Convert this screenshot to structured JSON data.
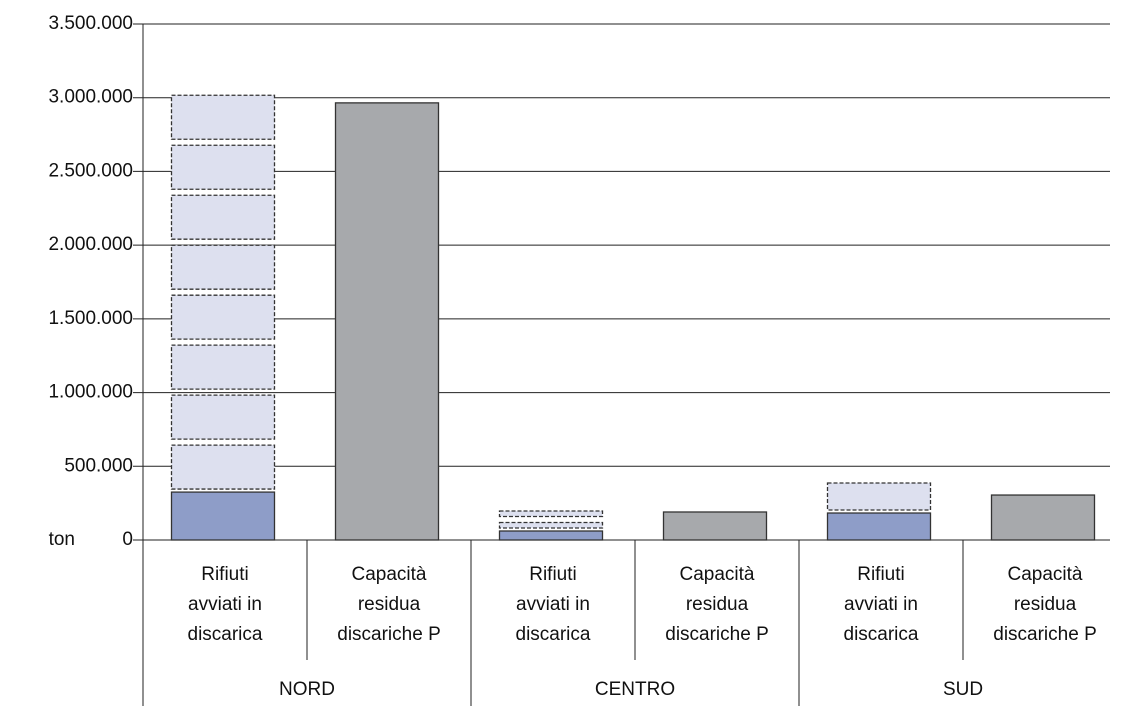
{
  "chart_data": {
    "type": "bar",
    "stacked": true,
    "y_label": "ton",
    "categories": [
      "Rifiuti avviati in discarica",
      "Capacità residua discariche P",
      "Rifiuti avviati in discarica",
      "Capacità residua discariche P",
      "Rifiuti avviati in discarica",
      "Capacità residua discariche P"
    ],
    "groups": [
      "NORD",
      "CENTRO",
      "SUD"
    ],
    "series": [
      {
        "color": "#8e9dc8",
        "values": [
          325000,
          null,
          61000,
          null,
          183000,
          null
        ]
      },
      {
        "color": "#dde0ef",
        "dashed": true,
        "values": [
          339000,
          null,
          78000,
          null,
          224000,
          null
        ]
      },
      {
        "color": "#dde0ef",
        "dashed": true,
        "values": [
          339000,
          null,
          78000,
          null,
          null,
          null
        ]
      },
      {
        "color": "#dde0ef",
        "dashed": true,
        "values": [
          339000,
          null,
          null,
          null,
          null,
          null
        ]
      },
      {
        "color": "#dde0ef",
        "dashed": true,
        "values": [
          339000,
          null,
          null,
          null,
          null,
          null
        ]
      },
      {
        "color": "#dde0ef",
        "dashed": true,
        "values": [
          339000,
          null,
          null,
          null,
          null,
          null
        ]
      },
      {
        "color": "#dde0ef",
        "dashed": true,
        "values": [
          339000,
          null,
          null,
          null,
          null,
          null
        ]
      },
      {
        "color": "#dde0ef",
        "dashed": true,
        "values": [
          339000,
          null,
          null,
          null,
          null,
          null
        ]
      },
      {
        "color": "#dde0ef",
        "dashed": true,
        "values": [
          339000,
          null,
          null,
          null,
          null,
          null
        ]
      },
      {
        "color": "#a7a9ac",
        "values": [
          null,
          2965000,
          null,
          190000,
          null,
          305000
        ]
      }
    ],
    "ylim": [
      0,
      3500000
    ],
    "yticks": [
      0,
      {
        "value": 500000,
        "label": "500.000"
      },
      {
        "value": 1000000,
        "label": "1.000.000"
      },
      {
        "value": 1500000,
        "label": "1.500.000"
      },
      {
        "value": 2000000,
        "label": "2.000.000"
      },
      {
        "value": 2500000,
        "label": "2.500.000"
      },
      {
        "value": 3000000,
        "label": "3.000.000"
      },
      {
        "value": 3500000,
        "label": "3.500.000"
      }
    ],
    "grid": true
  }
}
